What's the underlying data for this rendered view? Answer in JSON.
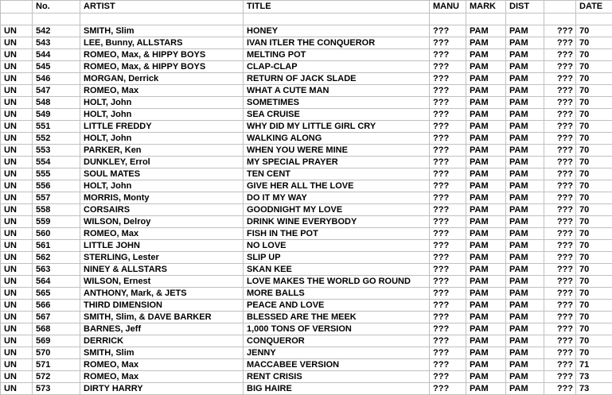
{
  "page": {
    "background_color": "#ffffff",
    "grid_line_color": "#c0c0c0",
    "text_color": "#000000"
  },
  "table": {
    "headers": [
      "",
      "No.",
      "ARTIST",
      "TITLE",
      "MANU",
      "MARK",
      "DIST",
      "",
      "DATE"
    ],
    "empty_row": [
      "",
      "",
      "",
      "",
      "",
      "",
      "",
      "",
      ""
    ],
    "rows": [
      [
        "UN",
        "542",
        "SMITH, Slim",
        "HONEY",
        "???",
        "PAM",
        "PAM",
        "???",
        "70"
      ],
      [
        "UN",
        "543",
        "LEE, Bunny, ALLSTARS",
        "IVAN ITLER THE CONQUEROR",
        "???",
        "PAM",
        "PAM",
        "???",
        "70"
      ],
      [
        "UN",
        "544",
        "ROMEO, Max, & HIPPY BOYS",
        "MELTING POT",
        "???",
        "PAM",
        "PAM",
        "???",
        "70"
      ],
      [
        "UN",
        "545",
        "ROMEO, Max, & HIPPY BOYS",
        "CLAP-CLAP",
        "???",
        "PAM",
        "PAM",
        "???",
        "70"
      ],
      [
        "UN",
        "546",
        "MORGAN, Derrick",
        "RETURN OF JACK SLADE",
        "???",
        "PAM",
        "PAM",
        "???",
        "70"
      ],
      [
        "UN",
        "547",
        "ROMEO, Max",
        "WHAT A CUTE MAN",
        "???",
        "PAM",
        "PAM",
        "???",
        "70"
      ],
      [
        "UN",
        "548",
        "HOLT, John",
        "SOMETIMES",
        "???",
        "PAM",
        "PAM",
        "???",
        "70"
      ],
      [
        "UN",
        "549",
        "HOLT, John",
        "SEA CRUISE",
        "???",
        "PAM",
        "PAM",
        "???",
        "70"
      ],
      [
        "UN",
        "551",
        "LITTLE FREDDY",
        "WHY DID MY LITTLE GIRL CRY",
        "???",
        "PAM",
        "PAM",
        "???",
        "70"
      ],
      [
        "UN",
        "552",
        "HOLT, John",
        "WALKING ALONG",
        "???",
        "PAM",
        "PAM",
        "???",
        "70"
      ],
      [
        "UN",
        "553",
        "PARKER, Ken",
        "WHEN YOU WERE MINE",
        "???",
        "PAM",
        "PAM",
        "???",
        "70"
      ],
      [
        "UN",
        "554",
        "DUNKLEY, Errol",
        "MY SPECIAL PRAYER",
        "???",
        "PAM",
        "PAM",
        "???",
        "70"
      ],
      [
        "UN",
        "555",
        "SOUL MATES",
        "TEN CENT",
        "???",
        "PAM",
        "PAM",
        "???",
        "70"
      ],
      [
        "UN",
        "556",
        "HOLT, John",
        "GIVE HER ALL THE LOVE",
        "???",
        "PAM",
        "PAM",
        "???",
        "70"
      ],
      [
        "UN",
        "557",
        "MORRIS, Monty",
        "DO IT MY WAY",
        "???",
        "PAM",
        "PAM",
        "???",
        "70"
      ],
      [
        "UN",
        "558",
        "CORSAIRS",
        "GOODNIGHT MY LOVE",
        "???",
        "PAM",
        "PAM",
        "???",
        "70"
      ],
      [
        "UN",
        "559",
        "WILSON, Delroy",
        "DRINK WINE EVERYBODY",
        "???",
        "PAM",
        "PAM",
        "???",
        "70"
      ],
      [
        "UN",
        "560",
        "ROMEO, Max",
        "FISH IN THE POT",
        "???",
        "PAM",
        "PAM",
        "???",
        "70"
      ],
      [
        "UN",
        "561",
        "LITTLE JOHN",
        "NO LOVE",
        "???",
        "PAM",
        "PAM",
        "???",
        "70"
      ],
      [
        "UN",
        "562",
        "STERLING, Lester",
        "SLIP UP",
        "???",
        "PAM",
        "PAM",
        "???",
        "70"
      ],
      [
        "UN",
        "563",
        "NINEY & ALLSTARS",
        "SKAN KEE",
        "???",
        "PAM",
        "PAM",
        "???",
        "70"
      ],
      [
        "UN",
        "564",
        "WILSON, Ernest",
        "LOVE MAKES THE WORLD GO ROUND",
        "???",
        "PAM",
        "PAM",
        "???",
        "70"
      ],
      [
        "UN",
        "565",
        "ANTHONY, Mark, & JETS",
        "MORE BALLS",
        "???",
        "PAM",
        "PAM",
        "???",
        "70"
      ],
      [
        "UN",
        "566",
        "THIRD DIMENSION",
        "PEACE AND LOVE",
        "???",
        "PAM",
        "PAM",
        "???",
        "70"
      ],
      [
        "UN",
        "567",
        "SMITH, Slim, & DAVE BARKER",
        "BLESSED ARE THE MEEK",
        "???",
        "PAM",
        "PAM",
        "???",
        "70"
      ],
      [
        "UN",
        "568",
        "BARNES, Jeff",
        "1,000 TONS OF VERSION",
        "???",
        "PAM",
        "PAM",
        "???",
        "70"
      ],
      [
        "UN",
        "569",
        "DERRICK",
        "CONQUEROR",
        "???",
        "PAM",
        "PAM",
        "???",
        "70"
      ],
      [
        "UN",
        "570",
        "SMITH, Slim",
        "JENNY",
        "???",
        "PAM",
        "PAM",
        "???",
        "70"
      ],
      [
        "UN",
        "571",
        "ROMEO, Max",
        "MACCABEE VERSION",
        "???",
        "PAM",
        "PAM",
        "???",
        "71"
      ],
      [
        "UN",
        "572",
        "ROMEO, Max",
        "RENT CRISIS",
        "???",
        "PAM",
        "PAM",
        "???",
        "73"
      ],
      [
        "UN",
        "573",
        "DIRTY HARRY",
        "BIG HAIRE",
        "???",
        "PAM",
        "PAM",
        "???",
        "73"
      ]
    ]
  }
}
